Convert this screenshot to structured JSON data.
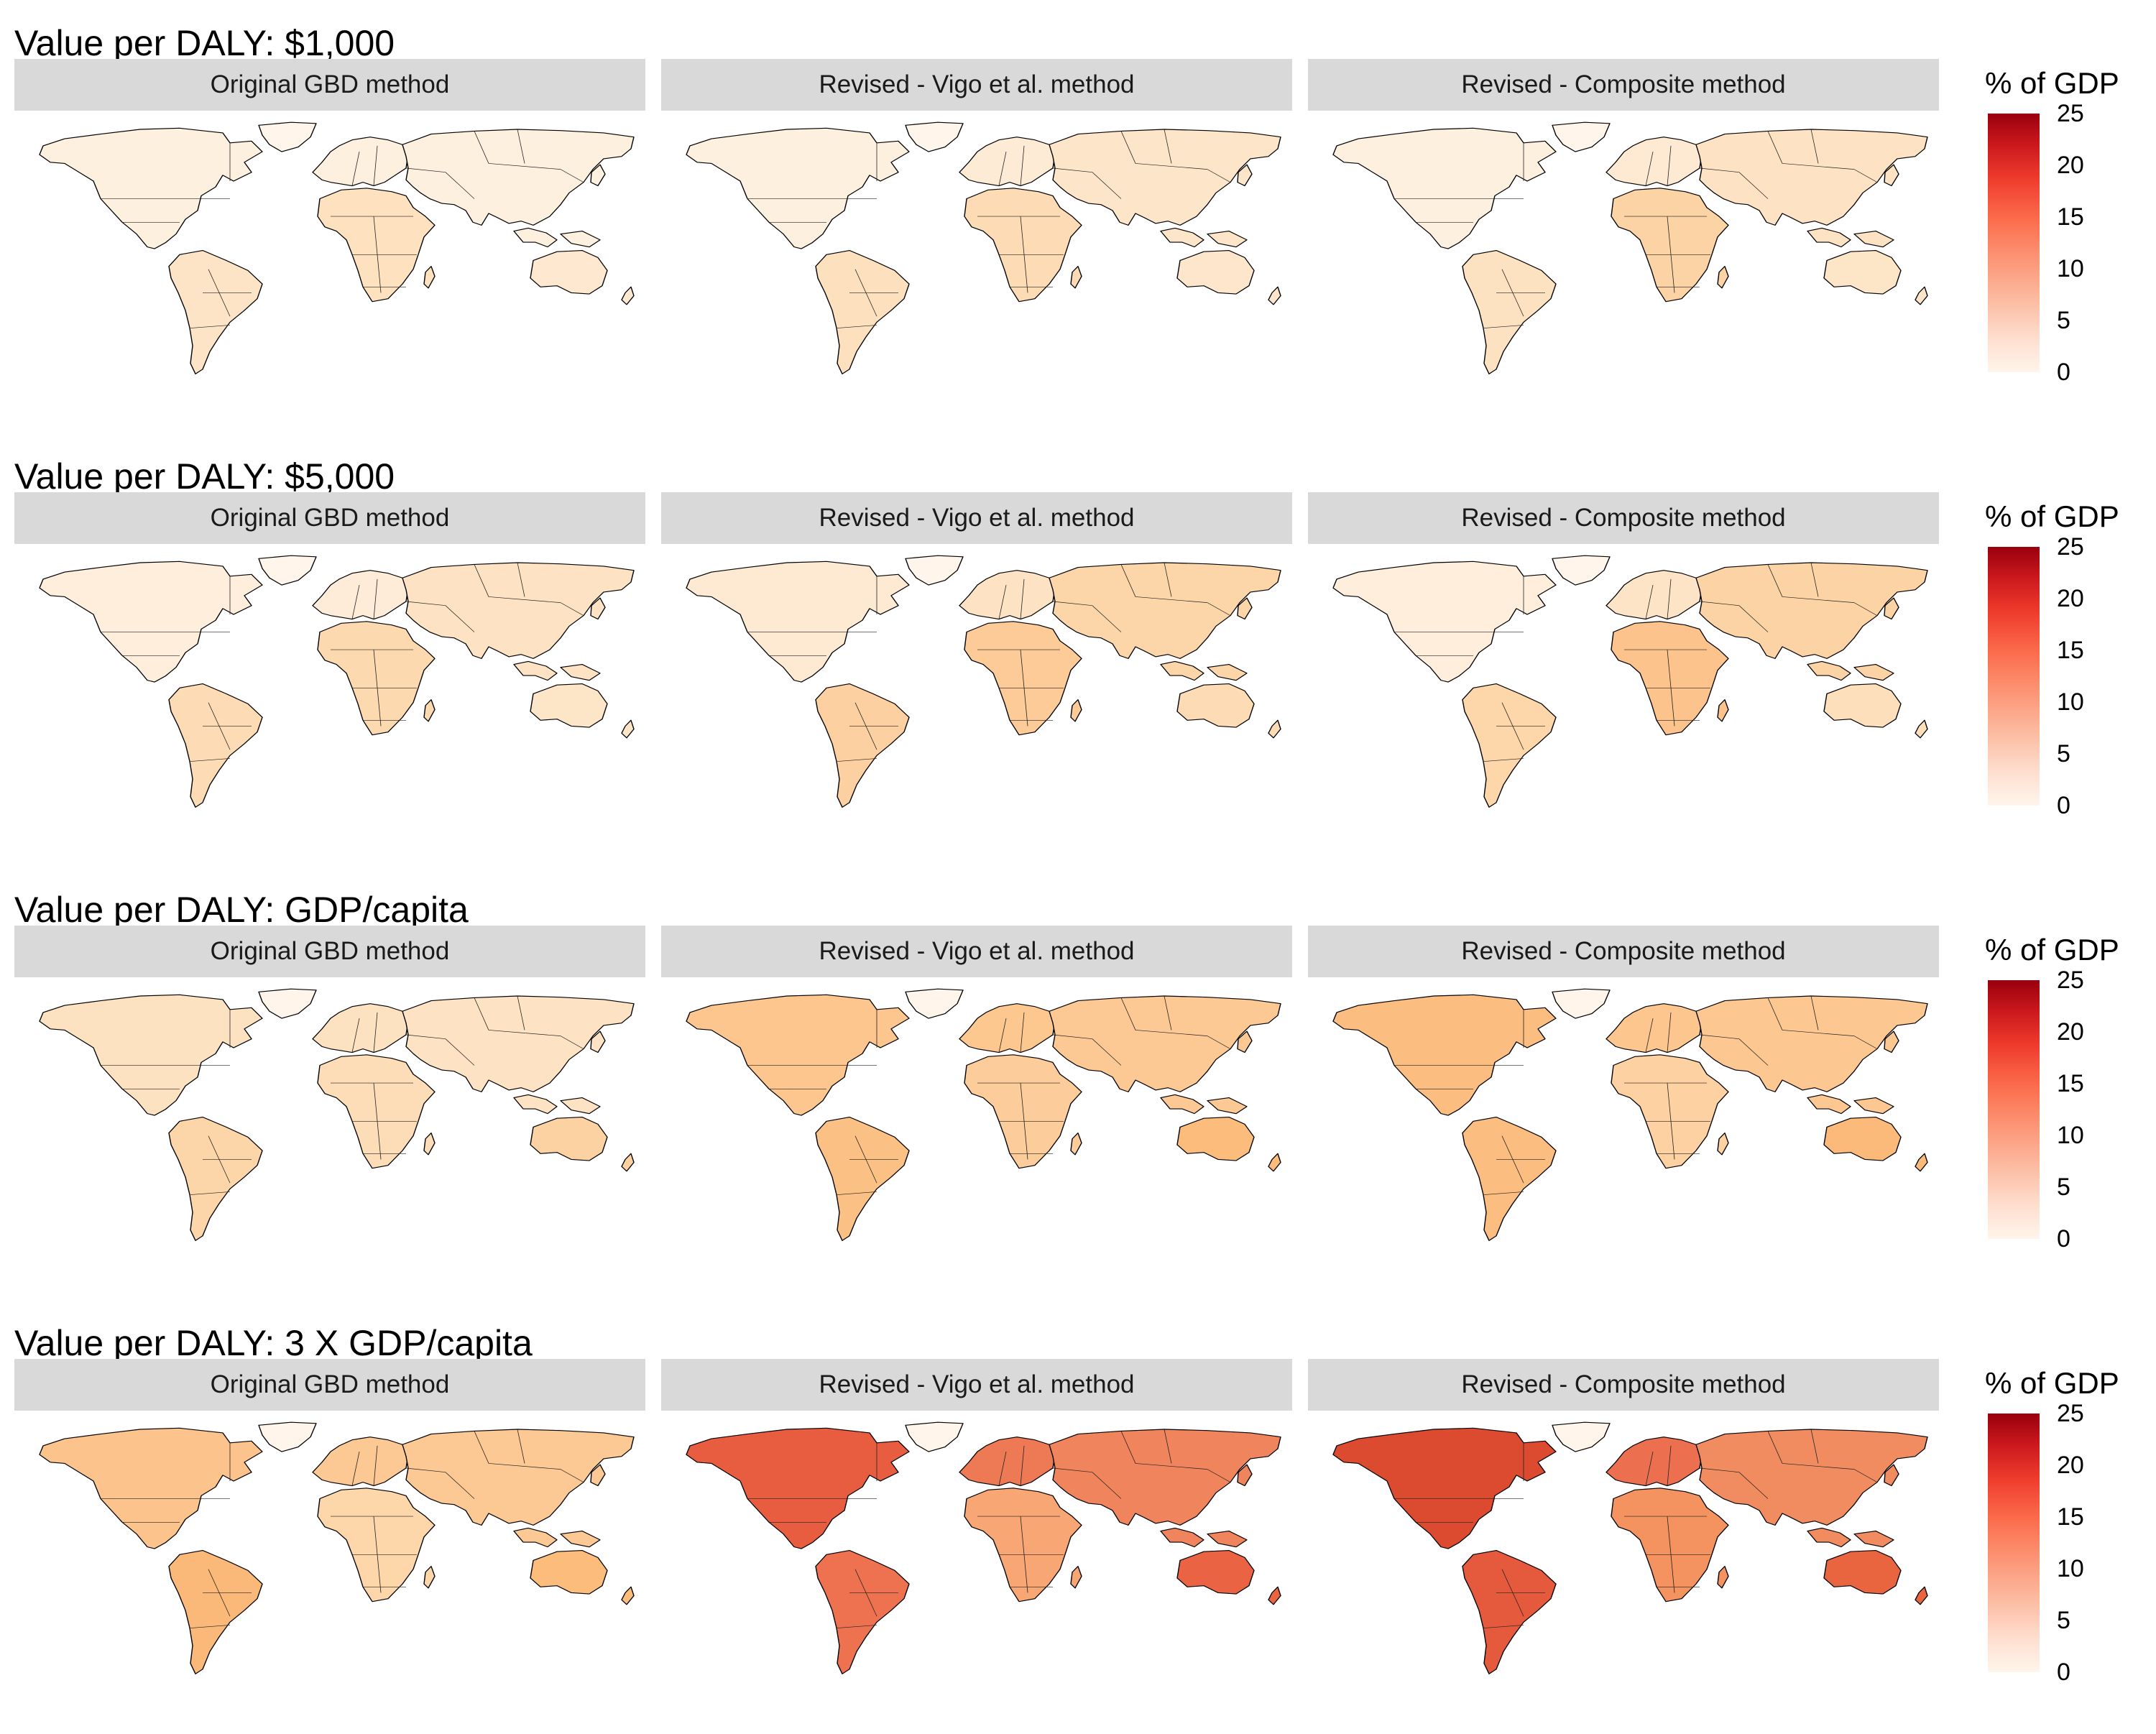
{
  "rows": [
    {
      "title": "Value per DALY: $1,000",
      "panels": [
        {
          "label": "Original GBD method",
          "fills": {
            "na": "#fef0df",
            "sa": "#fde4c7",
            "eu": "#fef0df",
            "asia": "#fef0df",
            "af": "#fee2c0",
            "oc": "#fee8cf",
            "gl": "#fff5eb"
          }
        },
        {
          "label": "Revised - Vigo et al. method",
          "fills": {
            "na": "#fef0df",
            "sa": "#fde0bd",
            "eu": "#feebd6",
            "asia": "#fde5c9",
            "af": "#fddcb5",
            "oc": "#fde6cb",
            "gl": "#fff5eb"
          }
        },
        {
          "label": "Revised - Composite method",
          "fills": {
            "na": "#fef0df",
            "sa": "#fde2c1",
            "eu": "#feead3",
            "asia": "#fde3c3",
            "af": "#fcd3a4",
            "oc": "#fde5c8",
            "gl": "#fff5eb"
          }
        }
      ]
    },
    {
      "title": "Value per DALY: $5,000",
      "panels": [
        {
          "label": "Original GBD method",
          "fills": {
            "na": "#feeedb",
            "sa": "#fddcb5",
            "eu": "#feecd8",
            "asia": "#fde3c3",
            "af": "#fdd9b0",
            "oc": "#fde5c8",
            "gl": "#fff5eb"
          }
        },
        {
          "label": "Revised - Vigo et al. method",
          "fills": {
            "na": "#fee9d2",
            "sa": "#fcd0a0",
            "eu": "#fde3c3",
            "asia": "#fcd6a8",
            "af": "#fccb98",
            "oc": "#fddcb5",
            "gl": "#fff5eb"
          }
        },
        {
          "label": "Revised - Composite method",
          "fills": {
            "na": "#feeedb",
            "sa": "#fdd6aa",
            "eu": "#fde4c6",
            "asia": "#fcd3a4",
            "af": "#fcc48c",
            "oc": "#fddfbb",
            "gl": "#fff5eb"
          }
        }
      ]
    },
    {
      "title": "Value per DALY: GDP/capita",
      "panels": [
        {
          "label": "Original GBD method",
          "fills": {
            "na": "#fde2c1",
            "sa": "#fcd6a8",
            "eu": "#fde2c1",
            "asia": "#fde3c3",
            "af": "#fdddb8",
            "oc": "#fcd2a2",
            "gl": "#fff5eb"
          }
        },
        {
          "label": "Revised - Vigo et al. method",
          "fills": {
            "na": "#fcc68e",
            "sa": "#fbc083",
            "eu": "#fcc88f",
            "asia": "#fcc893",
            "af": "#fccd9a",
            "oc": "#fbbc7c",
            "gl": "#fff5eb"
          }
        },
        {
          "label": "Revised - Composite method",
          "fills": {
            "na": "#fbbd80",
            "sa": "#fbbd80",
            "eu": "#fcc68e",
            "asia": "#fcc791",
            "af": "#fdd1a2",
            "oc": "#fbba7a",
            "gl": "#fff5eb"
          }
        }
      ]
    },
    {
      "title": "Value per DALY: 3 X GDP/capita",
      "panels": [
        {
          "label": "Original GBD method",
          "fills": {
            "na": "#fcc48c",
            "sa": "#fbb979",
            "eu": "#fcc893",
            "asia": "#fcc893",
            "af": "#fdd6aa",
            "oc": "#fbbc7c",
            "gl": "#fff5eb"
          }
        },
        {
          "label": "Revised - Vigo et al. method",
          "fills": {
            "na": "#e85d3f",
            "sa": "#ee7250",
            "eu": "#ee7a55",
            "asia": "#f0845c",
            "af": "#f8a774",
            "oc": "#ea6443",
            "gl": "#fff5eb"
          }
        },
        {
          "label": "Revised - Composite method",
          "fills": {
            "na": "#dc4a30",
            "sa": "#e55a3c",
            "eu": "#ec7050",
            "asia": "#f08c60",
            "af": "#f4935f",
            "oc": "#e9653f",
            "gl": "#fff5eb"
          }
        }
      ]
    }
  ],
  "legend": {
    "title": "% of GDP",
    "ticks": [
      "25",
      "20",
      "15",
      "10",
      "5",
      "0"
    ],
    "scale_min": 0,
    "scale_max": 25,
    "colors": [
      "#fff5eb",
      "#fee0d2",
      "#fcbba1",
      "#fc9272",
      "#fb6a4a",
      "#ef3b2c",
      "#cb181d",
      "#99000d"
    ]
  }
}
